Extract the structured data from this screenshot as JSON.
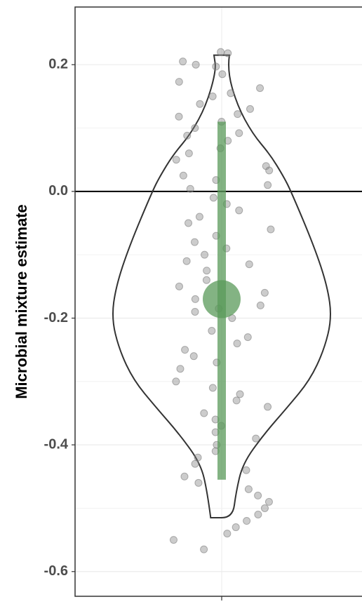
{
  "chart_data": {
    "type": "violin",
    "y_label": "Microbial mixture estimate",
    "ylim": [
      -0.639,
      0.291
    ],
    "yticks": [
      0.2,
      {
        "value": 0,
        "label": "0.0"
      },
      -0.2,
      -0.4,
      -0.6
    ],
    "hline": 0,
    "grid": true,
    "violin": {
      "y": [
        0.215,
        0.191,
        0.136,
        0.091,
        0.058,
        0.024,
        0,
        -0.087,
        -0.15,
        -0.2,
        -0.25,
        -0.298,
        -0.34,
        -0.384,
        -0.43,
        -0.475,
        -0.515
      ],
      "density": [
        0.07,
        0.05,
        0.14,
        0.28,
        0.44,
        0.56,
        0.63,
        0.84,
        0.96,
        1,
        0.93,
        0.8,
        0.6,
        0.38,
        0.19,
        0.13,
        0.1
      ],
      "color": "#333333"
    },
    "points": {
      "color": "#7f7f7f",
      "values": [
        0.22,
        0.218,
        0.205,
        0.2,
        0.197,
        0.185,
        0.173,
        0.163,
        0.155,
        0.15,
        0.138,
        0.13,
        0.122,
        0.118,
        0.11,
        0.1,
        0.092,
        0.088,
        0.08,
        0.068,
        0.06,
        0.05,
        0.04,
        0.033,
        0.025,
        0.018,
        0.01,
        0.004,
        -0.01,
        -0.02,
        -0.03,
        -0.04,
        -0.05,
        -0.06,
        -0.07,
        -0.08,
        -0.09,
        -0.1,
        -0.11,
        -0.115,
        -0.125,
        -0.14,
        -0.15,
        -0.16,
        -0.17,
        -0.18,
        -0.185,
        -0.19,
        -0.2,
        -0.22,
        -0.23,
        -0.24,
        -0.25,
        -0.26,
        -0.27,
        -0.28,
        -0.3,
        -0.31,
        -0.32,
        -0.33,
        -0.34,
        -0.35,
        -0.36,
        -0.37,
        -0.38,
        -0.39,
        -0.4,
        -0.41,
        -0.42,
        -0.43,
        -0.44,
        -0.45,
        -0.46,
        -0.47,
        -0.48,
        -0.49,
        -0.5,
        -0.51,
        -0.52,
        -0.53,
        -0.54,
        -0.55,
        -0.565
      ]
    },
    "estimate": {
      "value": -0.17,
      "low": -0.455,
      "high": 0.11,
      "color": "#5a9a5a"
    }
  }
}
